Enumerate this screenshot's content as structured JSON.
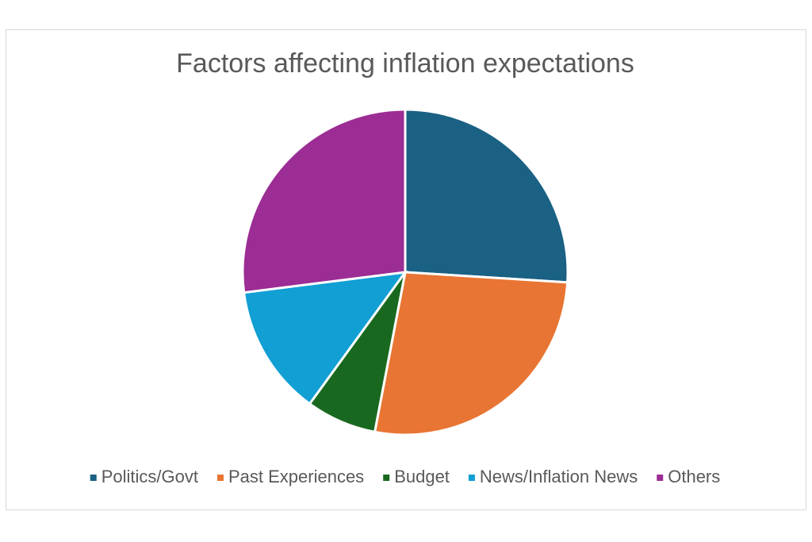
{
  "chart_data": {
    "type": "pie",
    "title": "Factors affecting inflation expectations",
    "categories": [
      "Politics/Govt",
      "Past Experiences",
      "Budget",
      "News/Inflation News",
      "Others"
    ],
    "values": [
      26,
      27,
      7,
      13,
      27
    ],
    "colors": [
      "#1a6184",
      "#e87533",
      "#18691f",
      "#119fd4",
      "#9c2d94"
    ],
    "legend": "bottom"
  }
}
